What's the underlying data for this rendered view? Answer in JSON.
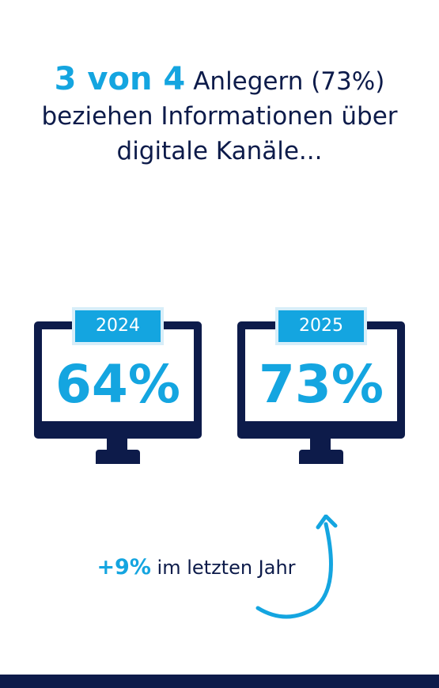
{
  "headline": {
    "highlight": "3 von 4",
    "rest": "Anlegern (73%) beziehen Informationen über digitale Kanäle..."
  },
  "monitors": [
    {
      "year": "2024",
      "value": "64%"
    },
    {
      "year": "2025",
      "value": "73%"
    }
  ],
  "change": {
    "value": "+9%",
    "text": "im letzten Jahr"
  },
  "colors": {
    "navy": "#0d1b4a",
    "accent": "#14a5e0",
    "accent_light": "#d7eef9"
  },
  "icons": [
    "monitor-icon",
    "curved-arrow-up-icon"
  ]
}
